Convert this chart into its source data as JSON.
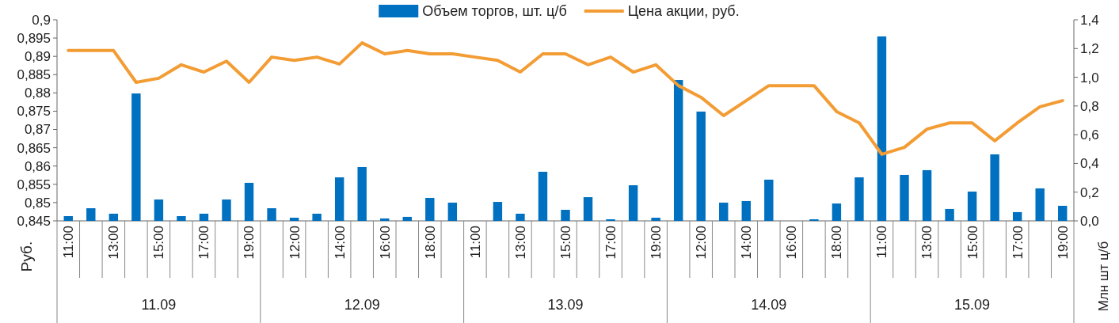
{
  "chart_data": {
    "type": "bar",
    "ylabel": "Руб.",
    "y2label": "Млн шт ц/б",
    "legend": "top",
    "categories": [
      "11:00",
      null,
      "13:00",
      null,
      "15:00",
      null,
      "17:00",
      null,
      "19:00",
      null,
      "12:00",
      null,
      "14:00",
      null,
      "16:00",
      null,
      "18:00",
      null,
      "11:00",
      null,
      "13:00",
      null,
      "15:00",
      null,
      "17:00",
      null,
      "19:00",
      null,
      "12:00",
      null,
      "14:00",
      null,
      "16:00",
      null,
      "18:00",
      null,
      "11:00",
      null,
      "13:00",
      null,
      "15:00",
      null,
      "17:00",
      null,
      "19:00"
    ],
    "annotations": [
      "11.09",
      "12.09",
      "13.09",
      "14.09",
      "15.09"
    ],
    "series": [
      {
        "name": "Объем торгов, шт. ц/б",
        "axis": "y2",
        "color": "#0070c0",
        "values": [
          0.033,
          0.088,
          0.05,
          0.887,
          0.149,
          0.033,
          0.05,
          0.149,
          0.265,
          0.088,
          0.022,
          0.05,
          0.303,
          0.375,
          0.017,
          0.028,
          0.16,
          0.127,
          0,
          0.132,
          0.05,
          0.342,
          0.077,
          0.165,
          0.011,
          0.248,
          0.022,
          0.981,
          0.761,
          0.127,
          0.138,
          0.287,
          0,
          0.011,
          0.121,
          0.303,
          1.284,
          0.32,
          0.353,
          0.083,
          0.204,
          0.463,
          0.061,
          0.226,
          0.105
        ]
      },
      {
        "name": "Цена акции, руб.",
        "type": "line",
        "axis": "y",
        "color": "#f39c34",
        "values": [
          0.8916,
          0.8916,
          0.8916,
          0.8829,
          0.884,
          0.8877,
          0.8857,
          0.8887,
          0.8829,
          0.8898,
          0.8889,
          0.8898,
          0.8879,
          0.8937,
          0.8907,
          0.8916,
          0.8907,
          0.8907,
          0.8898,
          0.8889,
          0.8857,
          0.8907,
          0.8907,
          0.8877,
          0.8898,
          0.8857,
          0.8877,
          0.882,
          0.8788,
          0.8738,
          0.8779,
          0.882,
          0.882,
          0.882,
          0.8749,
          0.8718,
          0.8632,
          0.8651,
          0.8701,
          0.8718,
          0.8718,
          0.8669,
          0.8718,
          0.8762,
          0.8779
        ]
      }
    ],
    "ylim": [
      0.845,
      0.9
    ],
    "yticks": [
      {
        "value": 0.845,
        "label": "0,845"
      },
      {
        "value": 0.85,
        "label": "0,85"
      },
      {
        "value": 0.855,
        "label": "0,855"
      },
      {
        "value": 0.86,
        "label": "0,86"
      },
      {
        "value": 0.865,
        "label": "0,865"
      },
      {
        "value": 0.87,
        "label": "0,87"
      },
      {
        "value": 0.875,
        "label": "0,875"
      },
      {
        "value": 0.88,
        "label": "0,88"
      },
      {
        "value": 0.885,
        "label": "0,885"
      },
      {
        "value": 0.89,
        "label": "0,89"
      },
      {
        "value": 0.895,
        "label": "0,895"
      },
      {
        "value": 0.9,
        "label": "0,9"
      }
    ],
    "y2lim": [
      0,
      1.4
    ],
    "y2ticks": [
      {
        "value": 0,
        "label": "0,0"
      },
      {
        "value": 0.2,
        "label": "0,2"
      },
      {
        "value": 0.4,
        "label": "0,4"
      },
      {
        "value": 0.6,
        "label": "0,6"
      },
      {
        "value": 0.8,
        "label": "0,8"
      },
      {
        "value": 1.0,
        "label": "1,0"
      },
      {
        "value": 1.2,
        "label": "1,2"
      },
      {
        "value": 1.4,
        "label": "1,4"
      }
    ]
  }
}
